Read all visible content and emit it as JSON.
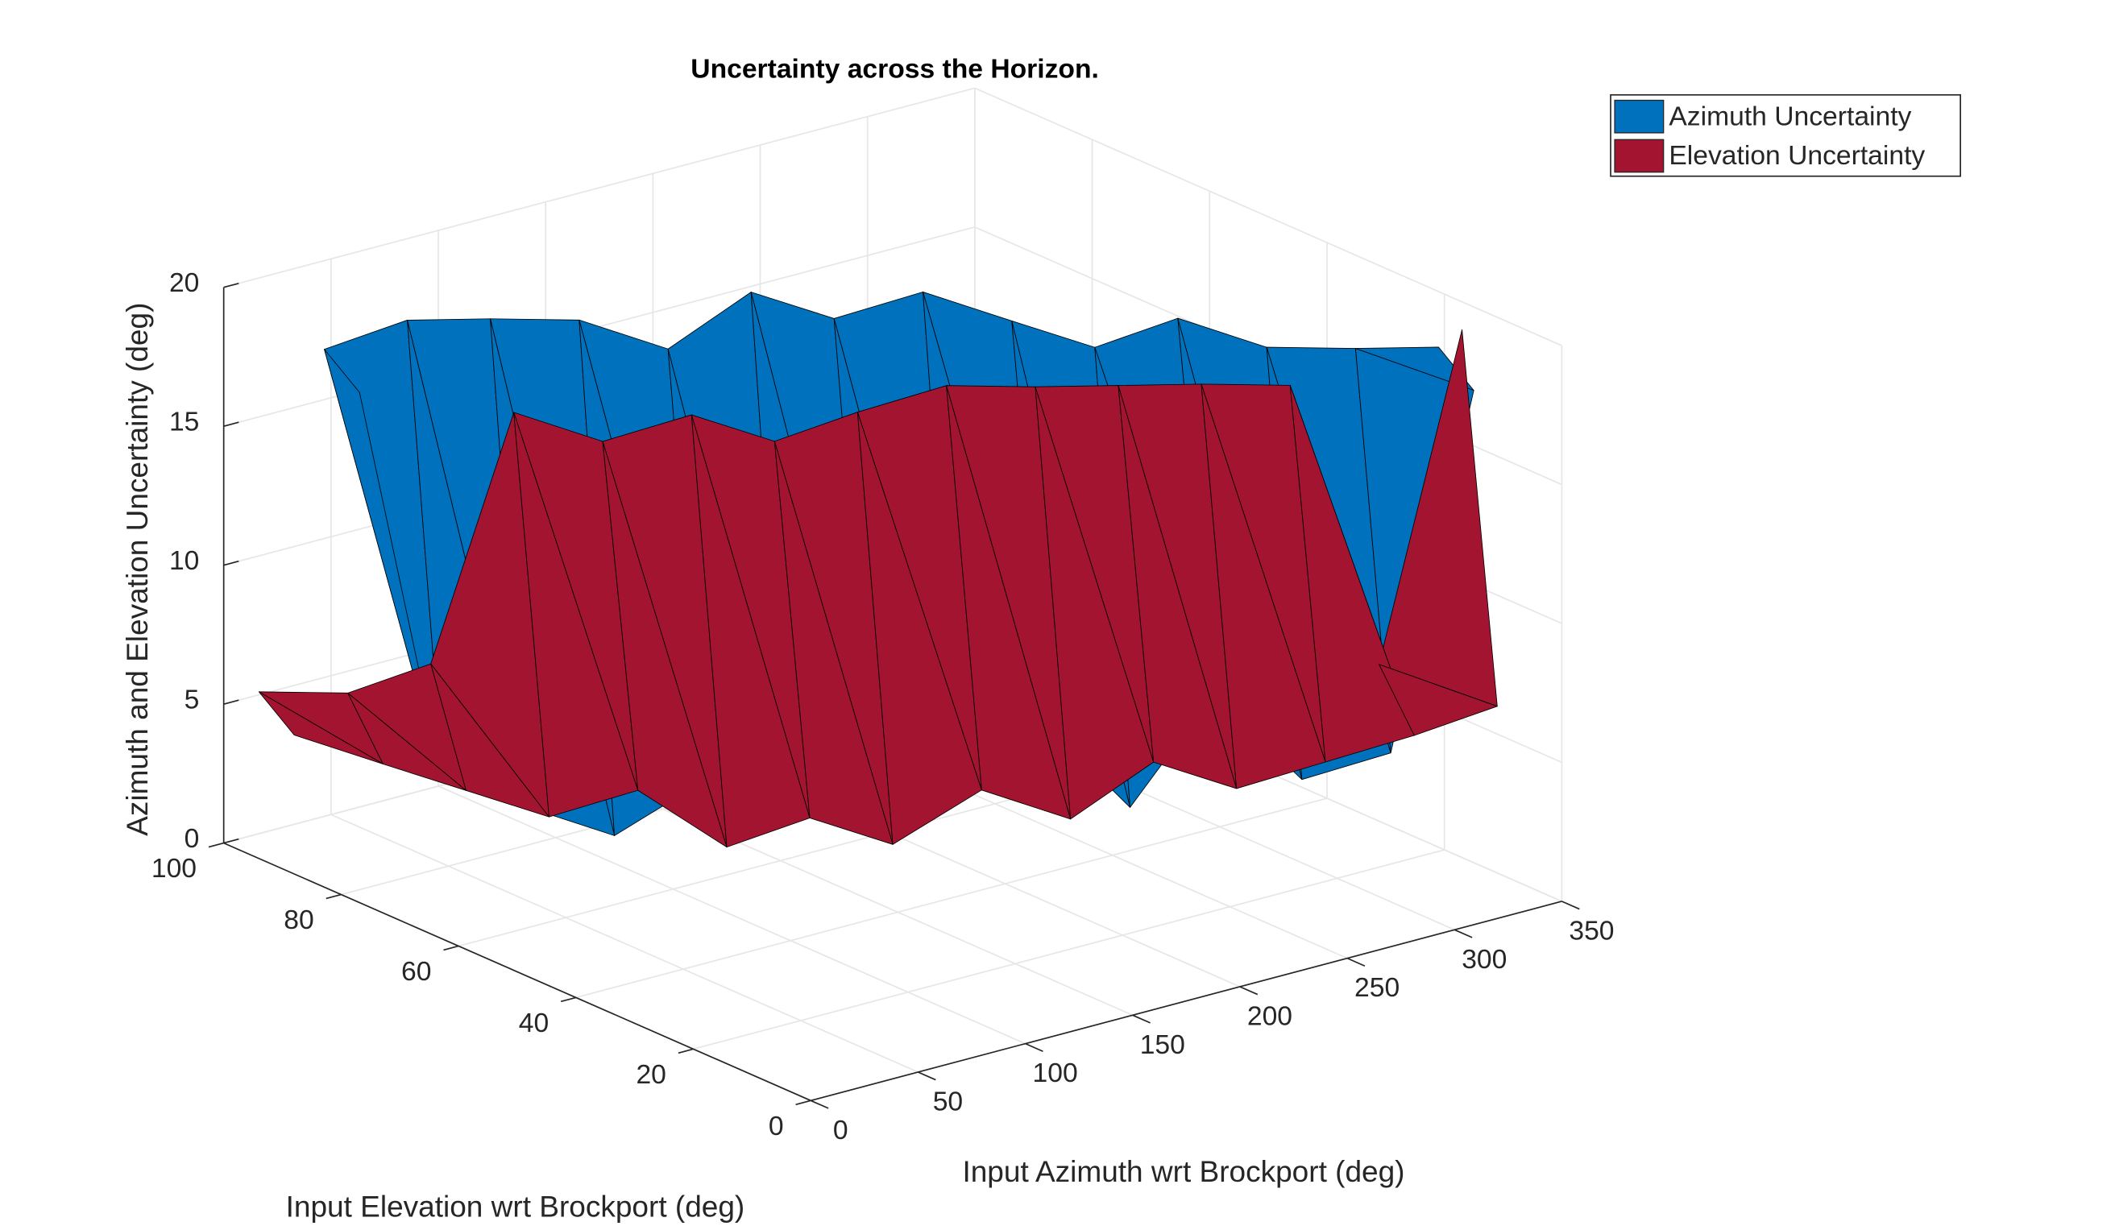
{
  "chart_data": {
    "type": "surface3d",
    "title": "Uncertainty across the Horizon.",
    "xlabel": "Input Azimuth wrt Brockport (deg)",
    "ylabel": "Input Elevation wrt Brockport (deg)",
    "zlabel": "Azimuth and Elevation Uncertainty (deg)",
    "xlim": [
      0,
      350
    ],
    "xticks": [
      0,
      50,
      100,
      150,
      200,
      250,
      300,
      350
    ],
    "ylim": [
      0,
      100
    ],
    "yticks": [
      0,
      20,
      40,
      60,
      80,
      100
    ],
    "zlim": [
      0,
      20
    ],
    "zticks": [
      0,
      5,
      10,
      15,
      20
    ],
    "grid": true,
    "legend": "northeast",
    "series": [
      {
        "name": "Azimuth Uncertainty",
        "color": "#0072bd",
        "x": [
          0,
          0,
          25,
          25,
          50,
          50,
          75,
          75,
          100,
          100,
          125,
          125,
          150,
          150,
          175,
          175,
          200,
          200,
          225,
          225,
          250,
          250,
          275,
          275,
          300,
          300,
          325,
          325,
          350,
          350
        ],
        "y": [
          92,
          98,
          86,
          92,
          81,
          87,
          76,
          82,
          70,
          76,
          64,
          70,
          59,
          65,
          54,
          60,
          48,
          54,
          42,
          48,
          37,
          43,
          32,
          38,
          26,
          32,
          20,
          26,
          15,
          21
        ],
        "values": [
          null,
          null,
          17,
          18,
          3,
          19,
          2,
          19,
          1,
          19,
          3,
          18,
          2,
          20,
          4,
          19,
          3,
          20,
          5,
          19,
          2,
          18,
          6,
          19,
          3,
          18,
          4,
          18,
          17,
          18
        ]
      },
      {
        "name": "Elevation Uncertainty",
        "color": "#a2142f",
        "x": [
          0,
          0,
          25,
          25,
          50,
          50,
          75,
          75,
          100,
          100,
          125,
          125,
          150,
          150,
          175,
          175,
          200,
          200,
          225,
          225,
          250,
          250,
          275,
          275,
          300,
          300,
          325,
          325,
          350,
          350
        ],
        "y": [
          88,
          94,
          82,
          88,
          77,
          83,
          72,
          78,
          66,
          72,
          60,
          66,
          55,
          61,
          50,
          56,
          44,
          50,
          38,
          44,
          33,
          39,
          28,
          34,
          22,
          28,
          16,
          22,
          11,
          17
        ],
        "values": [
          5,
          6,
          4,
          6,
          3,
          7,
          2,
          16,
          3,
          15,
          1,
          16,
          2,
          15,
          1,
          16,
          3,
          17,
          2,
          17,
          4,
          17,
          3,
          17,
          4,
          17,
          5,
          7,
          6,
          19
        ]
      }
    ]
  }
}
